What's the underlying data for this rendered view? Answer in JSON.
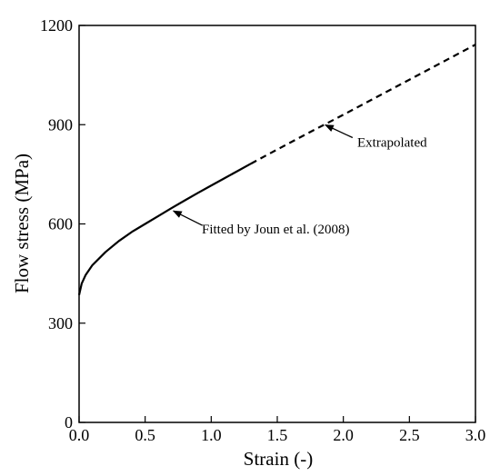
{
  "chart_data": {
    "type": "line",
    "title": "",
    "xlabel": "Strain (-)",
    "ylabel": "Flow stress (MPa)",
    "xlim": [
      0,
      3.0
    ],
    "ylim": [
      0,
      1200
    ],
    "x_ticks": [
      "0.0",
      "0.5",
      "1.0",
      "1.5",
      "2.0",
      "2.5",
      "3.0"
    ],
    "y_ticks": [
      "0",
      "300",
      "600",
      "900",
      "1200"
    ],
    "grid": false,
    "legend": "none",
    "series": [
      {
        "style": "solid",
        "color": "#000000",
        "x": [
          0.0,
          0.02,
          0.05,
          0.1,
          0.2,
          0.3,
          0.4,
          0.5,
          0.6,
          0.7,
          0.8,
          0.9,
          1.0,
          1.1,
          1.2,
          1.3
        ],
        "y": [
          385,
          420,
          446,
          475,
          515,
          548,
          576,
          600,
          624,
          648,
          671,
          694,
          716,
          738,
          760,
          782
        ]
      },
      {
        "style": "dashed",
        "color": "#000000",
        "x": [
          1.3,
          1.5,
          1.75,
          2.0,
          2.25,
          2.5,
          2.75,
          3.0
        ],
        "y": [
          782,
          825,
          878,
          930,
          983,
          1036,
          1089,
          1142
        ]
      }
    ],
    "annotations": [
      {
        "text": "Fitted by Joun et al. (2008)",
        "x": 0.7,
        "y": 642
      },
      {
        "text": "Extrapolated",
        "x": 1.85,
        "y": 902
      }
    ]
  }
}
